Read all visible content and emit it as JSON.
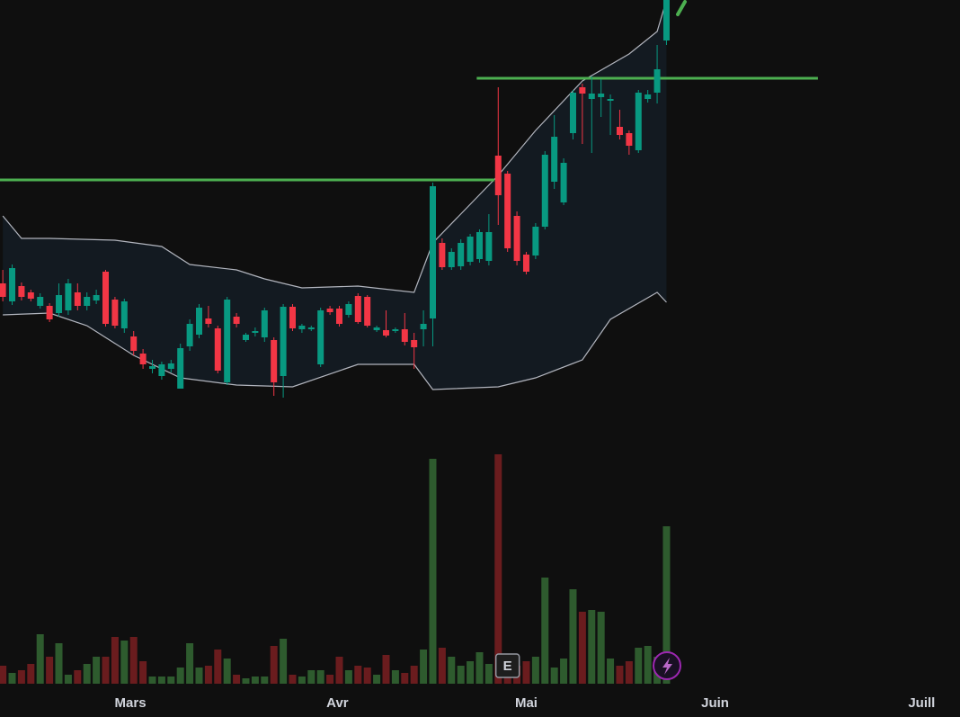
{
  "chart_data": {
    "type": "candlestick",
    "categories": [
      null,
      null,
      null,
      null,
      null,
      null,
      null,
      null,
      null,
      null,
      null,
      null,
      null,
      null,
      null,
      null,
      null,
      null,
      null,
      null,
      null,
      null,
      null,
      null,
      null,
      null,
      null,
      null,
      null,
      null,
      null,
      null,
      null,
      null,
      null,
      null,
      null,
      null,
      null,
      null,
      null,
      null,
      null,
      null,
      null,
      null,
      null,
      null,
      null,
      null,
      null,
      null,
      null,
      null,
      null,
      null,
      null,
      null,
      null,
      null,
      null,
      null,
      null,
      null,
      null,
      null,
      null,
      null,
      null,
      null,
      null,
      null
    ],
    "open": [
      485,
      465,
      482,
      475,
      460,
      460,
      452,
      455,
      475,
      460,
      466,
      498,
      467,
      435,
      426,
      407,
      390,
      382,
      390,
      368,
      415,
      428,
      446,
      435,
      375,
      448,
      422,
      430,
      425,
      422,
      382,
      459,
      434,
      434,
      395,
      457,
      457,
      450,
      471,
      470,
      433,
      433,
      432,
      434,
      422,
      434,
      446,
      530,
      503,
      504,
      509,
      512,
      510,
      627,
      607,
      560,
      517,
      516,
      548,
      598,
      575,
      652,
      703,
      690,
      692,
      688,
      659,
      652,
      633,
      690,
      697,
      755
    ],
    "high": [
      500,
      506,
      486,
      478,
      474,
      463,
      485,
      490,
      485,
      475,
      478,
      500,
      470,
      468,
      432,
      412,
      400,
      398,
      400,
      418,
      445,
      462,
      460,
      438,
      470,
      452,
      430,
      436,
      458,
      425,
      462,
      462,
      440,
      438,
      458,
      460,
      460,
      465,
      474,
      472,
      438,
      455,
      436,
      452,
      430,
      455,
      597,
      535,
      524,
      534,
      540,
      545,
      562,
      703,
      610,
      565,
      520,
      552,
      632,
      672,
      624,
      700,
      707,
      715,
      712,
      695,
      678,
      655,
      700,
      700,
      750,
      820
    ],
    "low": [
      465,
      461,
      466,
      465,
      457,
      442,
      448,
      450,
      455,
      455,
      462,
      437,
      435,
      430,
      405,
      390,
      385,
      378,
      386,
      368,
      410,
      424,
      436,
      385,
      372,
      436,
      420,
      426,
      420,
      360,
      358,
      432,
      430,
      432,
      392,
      450,
      437,
      447,
      440,
      436,
      431,
      425,
      430,
      416,
      390,
      415,
      415,
      500,
      500,
      500,
      505,
      508,
      505,
      550,
      520,
      505,
      495,
      512,
      545,
      590,
      572,
      645,
      640,
      630,
      670,
      650,
      645,
      628,
      630,
      686,
      685,
      750
    ],
    "close": [
      470,
      502,
      470,
      468,
      470,
      445,
      472,
      485,
      460,
      470,
      472,
      440,
      438,
      465,
      410,
      395,
      393,
      395,
      396,
      413,
      440,
      458,
      440,
      388,
      467,
      440,
      428,
      432,
      455,
      375,
      459,
      435,
      438,
      436,
      455,
      453,
      440,
      462,
      442,
      438,
      436,
      427,
      434,
      420,
      414,
      440,
      593,
      503,
      520,
      530,
      537,
      542,
      542,
      583,
      524,
      510,
      498,
      548,
      628,
      648,
      619,
      697,
      696,
      696,
      696,
      690,
      650,
      638,
      697,
      695,
      723,
      810
    ],
    "up_color": "#089981",
    "down_color": "#f23645",
    "xlim": [
      -0.3,
      102.4
    ],
    "ylim": [
      340,
      800
    ],
    "xticks": [
      {
        "value": 13.65,
        "label": "Mars"
      },
      {
        "value": 35.8,
        "label": "Avr"
      },
      {
        "value": 56,
        "label": "Mai"
      },
      {
        "value": 76.2,
        "label": "Juin"
      },
      {
        "value": 98.3,
        "label": "Juill"
      }
    ],
    "bands": {
      "color": "#b2b5be",
      "fill": "#131a21",
      "upper": {
        "x": [
          0,
          2,
          5,
          12,
          17,
          20,
          25,
          28,
          32,
          38,
          44,
          46,
          53,
          57,
          62,
          67,
          70,
          71
        ],
        "values": [
          560,
          535,
          535,
          533,
          526,
          506,
          500,
          490,
          480,
          482,
          475,
          530,
          605,
          655,
          710,
          740,
          765,
          800
        ]
      },
      "lower": {
        "x": [
          0,
          5,
          9,
          14,
          19,
          25,
          31,
          38,
          44,
          46,
          53,
          57,
          62,
          65,
          70,
          71
        ],
        "values": [
          450,
          452,
          438,
          405,
          380,
          372,
          370,
          395,
          395,
          367,
          370,
          380,
          400,
          445,
          475,
          464
        ]
      }
    },
    "levels": [
      {
        "value": 600,
        "x": [
          -0.3,
          52.6
        ],
        "color": "#4caf50"
      },
      {
        "value": 713,
        "x": [
          50.7,
          87.2
        ],
        "color": "#4caf50"
      }
    ],
    "volume": {
      "ylim": [
        0,
        260
      ],
      "up_color": "#2e5b2e",
      "down_color": "#6a1c1e",
      "values": [
        20,
        12,
        15,
        22,
        55,
        30,
        45,
        10,
        15,
        22,
        30,
        30,
        52,
        48,
        52,
        25,
        8,
        8,
        8,
        18,
        45,
        18,
        20,
        38,
        28,
        10,
        6,
        8,
        8,
        42,
        50,
        10,
        8,
        15,
        15,
        10,
        30,
        15,
        20,
        18,
        10,
        32,
        15,
        12,
        20,
        38,
        250,
        40,
        30,
        20,
        25,
        35,
        22,
        255,
        30,
        20,
        25,
        30,
        118,
        18,
        28,
        105,
        80,
        82,
        80,
        28,
        20,
        25,
        40,
        42,
        30,
        175
      ]
    },
    "events": [
      {
        "label": "E",
        "x": 54
      }
    ]
  }
}
